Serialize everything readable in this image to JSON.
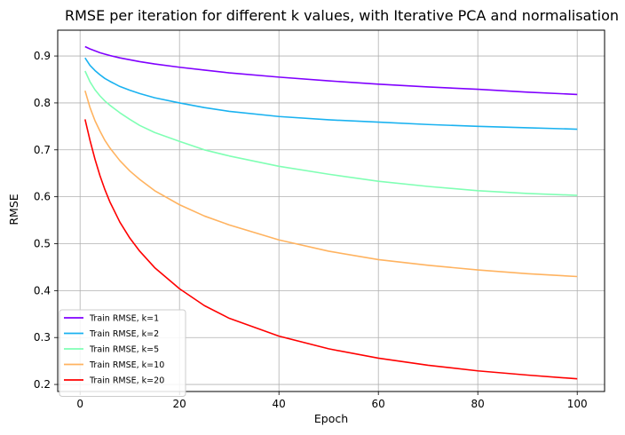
{
  "chart_data": {
    "type": "line",
    "title": "RMSE per iteration for different k values, with Iterative PCA and normalisation",
    "xlabel": "Epoch",
    "ylabel": "RMSE",
    "xlim": [
      -4.5,
      105.5
    ],
    "ylim": [
      0.185,
      0.955
    ],
    "xticks": [
      0,
      20,
      40,
      60,
      80,
      100
    ],
    "yticks": [
      0.2,
      0.3,
      0.4,
      0.5,
      0.6,
      0.7,
      0.8,
      0.9
    ],
    "grid": true,
    "legend_position": "lower-left",
    "x": [
      1,
      2,
      3,
      4,
      5,
      6,
      8,
      10,
      12,
      15,
      20,
      25,
      30,
      40,
      50,
      60,
      70,
      80,
      90,
      100
    ],
    "series": [
      {
        "name": "Train RMSE, k=1",
        "color": "#8000ff",
        "values": [
          0.92,
          0.915,
          0.911,
          0.907,
          0.904,
          0.901,
          0.896,
          0.892,
          0.888,
          0.883,
          0.876,
          0.87,
          0.864,
          0.855,
          0.847,
          0.84,
          0.834,
          0.829,
          0.823,
          0.818
        ]
      },
      {
        "name": "Train RMSE, k=2",
        "color": "#1ab2f0",
        "values": [
          0.896,
          0.88,
          0.869,
          0.86,
          0.852,
          0.846,
          0.835,
          0.827,
          0.82,
          0.811,
          0.8,
          0.79,
          0.782,
          0.771,
          0.764,
          0.759,
          0.754,
          0.75,
          0.747,
          0.744
        ]
      },
      {
        "name": "Train RMSE, k=5",
        "color": "#80ffb4",
        "values": [
          0.868,
          0.845,
          0.828,
          0.815,
          0.804,
          0.795,
          0.779,
          0.765,
          0.752,
          0.737,
          0.718,
          0.7,
          0.687,
          0.665,
          0.648,
          0.633,
          0.622,
          0.613,
          0.607,
          0.603
        ]
      },
      {
        "name": "Train RMSE, k=10",
        "color": "#ffb360",
        "values": [
          0.826,
          0.79,
          0.762,
          0.74,
          0.72,
          0.704,
          0.677,
          0.655,
          0.637,
          0.613,
          0.583,
          0.559,
          0.54,
          0.508,
          0.484,
          0.466,
          0.454,
          0.444,
          0.436,
          0.43
        ]
      },
      {
        "name": "Train RMSE, k=20",
        "color": "#ff0000",
        "values": [
          0.765,
          0.72,
          0.68,
          0.645,
          0.615,
          0.589,
          0.546,
          0.512,
          0.484,
          0.449,
          0.404,
          0.368,
          0.341,
          0.303,
          0.276,
          0.256,
          0.241,
          0.229,
          0.22,
          0.212
        ]
      }
    ]
  }
}
